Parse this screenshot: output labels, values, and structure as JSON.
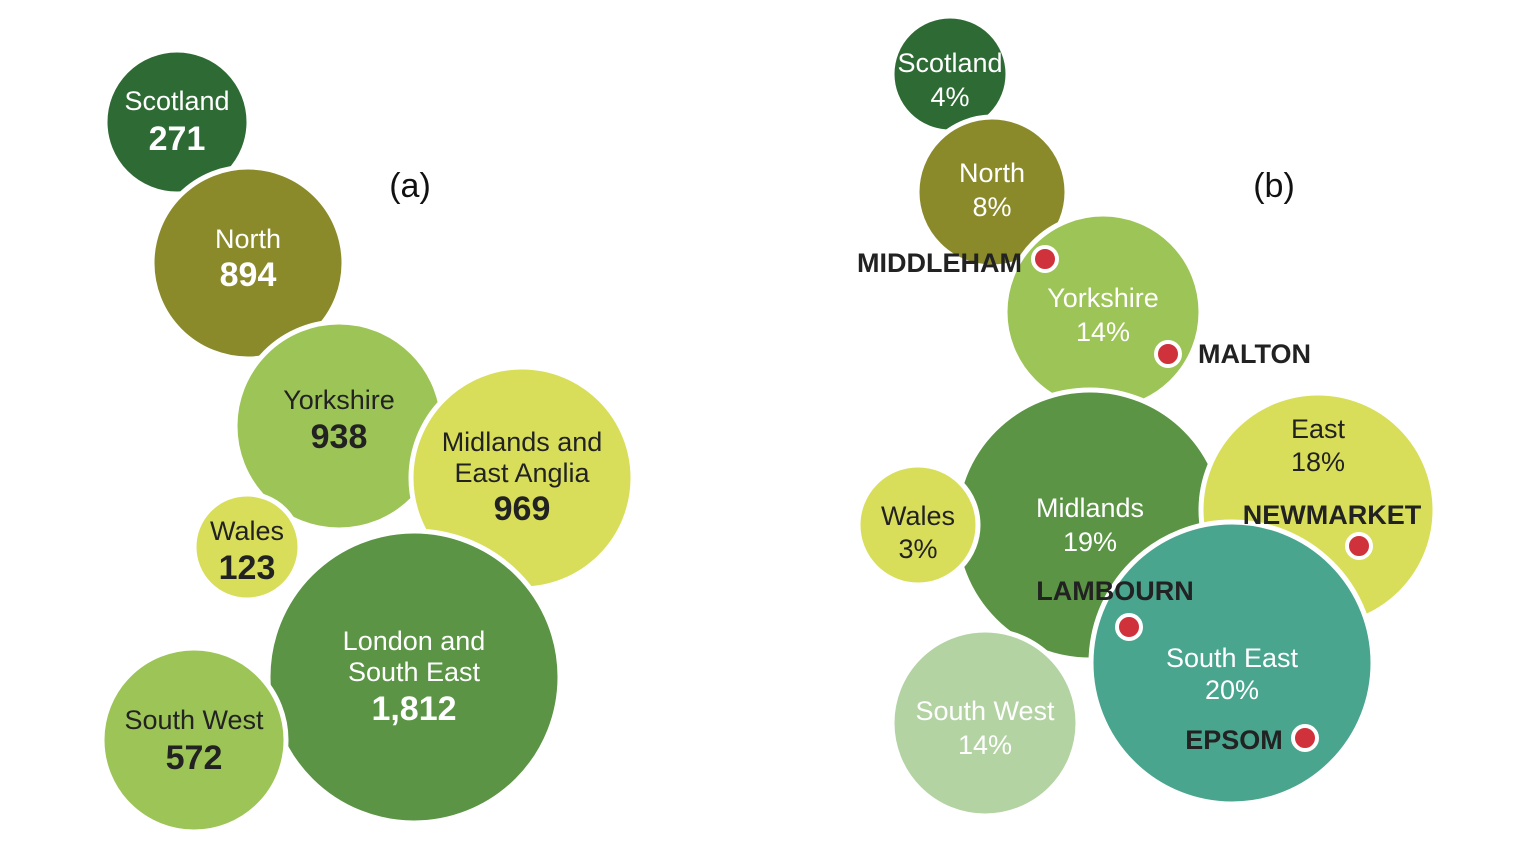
{
  "chart_data": [
    {
      "type": "bubble",
      "panel_label": "(a)",
      "bubbles": [
        {
          "name": "Scotland",
          "value": "271",
          "color": "#2e6b34"
        },
        {
          "name": "North",
          "value": "894",
          "color": "#8a8a2a"
        },
        {
          "name": "Yorkshire",
          "value": "938",
          "color": "#9dc456"
        },
        {
          "name": "Midlands and East Anglia",
          "value": "969",
          "color": "#d8de5a"
        },
        {
          "name": "Wales",
          "value": "123",
          "color": "#d8de5a"
        },
        {
          "name": "London and South East",
          "value": "1,812",
          "color": "#5a9444"
        },
        {
          "name": "South West",
          "value": "572",
          "color": "#9dc456"
        }
      ]
    },
    {
      "type": "bubble",
      "panel_label": "(b)",
      "bubbles": [
        {
          "name": "Scotland",
          "value": "4%",
          "color": "#2e6b34"
        },
        {
          "name": "North",
          "value": "8%",
          "color": "#8a8a2a"
        },
        {
          "name": "Yorkshire",
          "value": "14%",
          "color": "#9dc456"
        },
        {
          "name": "Midlands",
          "value": "19%",
          "color": "#5a9444"
        },
        {
          "name": "East",
          "value": "18%",
          "color": "#d8de5a"
        },
        {
          "name": "Wales",
          "value": "3%",
          "color": "#d8de5a"
        },
        {
          "name": "South East",
          "value": "20%",
          "color": "#4aa58f"
        },
        {
          "name": "South West",
          "value": "14%",
          "color": "#b3d3a3"
        }
      ],
      "towns": [
        "MIDDLEHAM",
        "MALTON",
        "NEWMARKET",
        "LAMBOURN",
        "EPSOM"
      ],
      "town_marker_color": "#d0323c"
    }
  ]
}
